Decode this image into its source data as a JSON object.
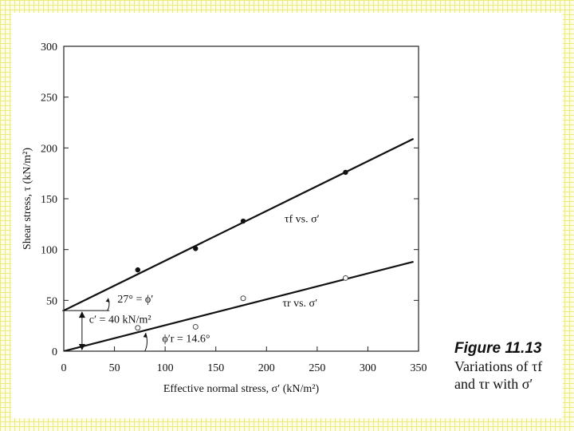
{
  "chart_data": {
    "type": "scatter",
    "xlabel": "Effective normal stress, σ′ (kN/m²)",
    "ylabel": "Shear stress, τ (kN/m²)",
    "xlim": [
      0,
      350
    ],
    "ylim": [
      0,
      300
    ],
    "x_ticks": [
      0,
      50,
      100,
      150,
      200,
      250,
      300,
      350
    ],
    "y_ticks": [
      0,
      50,
      100,
      150,
      200,
      250,
      300
    ],
    "grid": false,
    "series": [
      {
        "name": "τf vs. σ′",
        "marker": "filled",
        "points": [
          [
            73,
            80
          ],
          [
            130,
            101
          ],
          [
            177,
            128
          ],
          [
            278,
            176
          ]
        ],
        "fit_line": {
          "x": [
            0,
            345
          ],
          "y": [
            40,
            209
          ]
        }
      },
      {
        "name": "τr vs. σ′",
        "marker": "open",
        "points": [
          [
            73,
            23
          ],
          [
            130,
            24
          ],
          [
            177,
            52
          ],
          [
            278,
            72
          ]
        ],
        "fit_line": {
          "x": [
            0,
            345
          ],
          "y": [
            0,
            88
          ]
        }
      }
    ],
    "annotations": [
      {
        "text": "27° = ϕ′"
      },
      {
        "text": "c′ = 40 kN/m²"
      },
      {
        "text": "ϕ′r = 14.6°"
      }
    ]
  },
  "caption": {
    "title": "Figure 11.13",
    "line1": "Variations of τf",
    "line2": "and τr with σ′"
  }
}
